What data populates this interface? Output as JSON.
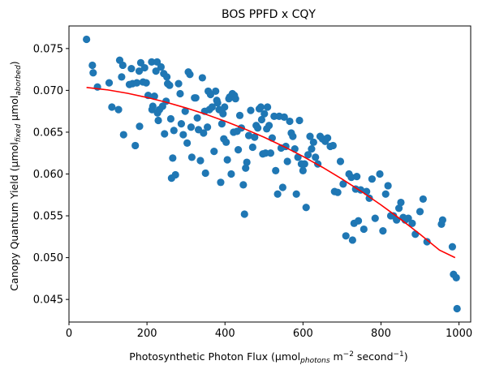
{
  "chart_data": {
    "type": "scatter",
    "title": "BOS PPFD x CQY",
    "xlabel": {
      "prefix": "Photosynthetic Photon Flux (µmol",
      "sub": "photons",
      "mid": " m",
      "sup1": "−2",
      "mid2": " second",
      "sup2": "−1",
      "suffix": ")"
    },
    "ylabel": {
      "prefix": "Canopy Quantum Yield (µmol",
      "sub1": "fixed",
      "mid": " µmol",
      "sub2": "aborbed",
      "suffix": ")"
    },
    "xlim": [
      0,
      1030
    ],
    "ylim": [
      0.0423,
      0.0777
    ],
    "xticks": [
      0,
      200,
      400,
      600,
      800,
      1000
    ],
    "xtick_labels": [
      "0",
      "200",
      "400",
      "600",
      "800",
      "1000"
    ],
    "yticks": [
      0.045,
      0.05,
      0.055,
      0.06,
      0.065,
      0.07,
      0.075
    ],
    "ytick_labels": [
      "0.045",
      "0.050",
      "0.055",
      "0.060",
      "0.065",
      "0.070",
      "0.075"
    ],
    "grid": false,
    "colors": {
      "points": "#1f77b4",
      "fit": "#ff0000"
    },
    "points": [
      [
        45,
        0.0761
      ],
      [
        60,
        0.073
      ],
      [
        62,
        0.0721
      ],
      [
        73,
        0.0704
      ],
      [
        103,
        0.0709
      ],
      [
        110,
        0.068
      ],
      [
        127,
        0.0677
      ],
      [
        130,
        0.0736
      ],
      [
        135,
        0.0716
      ],
      [
        138,
        0.073
      ],
      [
        140,
        0.0647
      ],
      [
        155,
        0.0707
      ],
      [
        160,
        0.0726
      ],
      [
        163,
        0.0708
      ],
      [
        170,
        0.0634
      ],
      [
        174,
        0.0709
      ],
      [
        180,
        0.0723
      ],
      [
        181,
        0.0657
      ],
      [
        184,
        0.0733
      ],
      [
        190,
        0.071
      ],
      [
        194,
        0.0727
      ],
      [
        198,
        0.0709
      ],
      [
        203,
        0.0694
      ],
      [
        212,
        0.0734
      ],
      [
        213,
        0.0677
      ],
      [
        215,
        0.0681
      ],
      [
        219,
        0.0693
      ],
      [
        223,
        0.0723
      ],
      [
        226,
        0.0734
      ],
      [
        227,
        0.0673
      ],
      [
        229,
        0.0664
      ],
      [
        232,
        0.0677
      ],
      [
        236,
        0.0728
      ],
      [
        240,
        0.0681
      ],
      [
        243,
        0.072
      ],
      [
        245,
        0.0648
      ],
      [
        249,
        0.0687
      ],
      [
        251,
        0.0716
      ],
      [
        253,
        0.0708
      ],
      [
        258,
        0.0706
      ],
      [
        261,
        0.0666
      ],
      [
        263,
        0.0595
      ],
      [
        266,
        0.0619
      ],
      [
        269,
        0.0652
      ],
      [
        273,
        0.0599
      ],
      [
        281,
        0.0708
      ],
      [
        285,
        0.0696
      ],
      [
        288,
        0.066
      ],
      [
        293,
        0.0647
      ],
      [
        298,
        0.0675
      ],
      [
        303,
        0.0637
      ],
      [
        306,
        0.0722
      ],
      [
        310,
        0.0719
      ],
      [
        313,
        0.0656
      ],
      [
        315,
        0.062
      ],
      [
        322,
        0.0691
      ],
      [
        325,
        0.0691
      ],
      [
        329,
        0.0667
      ],
      [
        332,
        0.0653
      ],
      [
        337,
        0.0616
      ],
      [
        342,
        0.0715
      ],
      [
        345,
        0.0649
      ],
      [
        348,
        0.0675
      ],
      [
        350,
        0.0601
      ],
      [
        355,
        0.0656
      ],
      [
        357,
        0.0699
      ],
      [
        360,
        0.0677
      ],
      [
        363,
        0.0695
      ],
      [
        367,
        0.068
      ],
      [
        372,
        0.0627
      ],
      [
        376,
        0.0699
      ],
      [
        379,
        0.0688
      ],
      [
        381,
        0.0685
      ],
      [
        385,
        0.0677
      ],
      [
        389,
        0.059
      ],
      [
        392,
        0.066
      ],
      [
        395,
        0.0672
      ],
      [
        397,
        0.0642
      ],
      [
        399,
        0.068
      ],
      [
        403,
        0.0638
      ],
      [
        406,
        0.0617
      ],
      [
        410,
        0.069
      ],
      [
        412,
        0.0692
      ],
      [
        416,
        0.06
      ],
      [
        419,
        0.0696
      ],
      [
        422,
        0.065
      ],
      [
        424,
        0.0694
      ],
      [
        427,
        0.069
      ],
      [
        431,
        0.0651
      ],
      [
        434,
        0.0629
      ],
      [
        438,
        0.067
      ],
      [
        442,
        0.0655
      ],
      [
        447,
        0.0587
      ],
      [
        450,
        0.0552
      ],
      [
        453,
        0.0607
      ],
      [
        456,
        0.0614
      ],
      [
        461,
        0.0646
      ],
      [
        466,
        0.0676
      ],
      [
        471,
        0.0632
      ],
      [
        476,
        0.0644
      ],
      [
        480,
        0.0658
      ],
      [
        484,
        0.0655
      ],
      [
        488,
        0.0678
      ],
      [
        492,
        0.068
      ],
      [
        494,
        0.0665
      ],
      [
        497,
        0.0624
      ],
      [
        501,
        0.0672
      ],
      [
        504,
        0.0625
      ],
      [
        507,
        0.0654
      ],
      [
        509,
        0.068
      ],
      [
        513,
        0.0658
      ],
      [
        517,
        0.0625
      ],
      [
        521,
        0.0643
      ],
      [
        526,
        0.0669
      ],
      [
        530,
        0.0604
      ],
      [
        535,
        0.0576
      ],
      [
        539,
        0.0669
      ],
      [
        544,
        0.0631
      ],
      [
        548,
        0.0584
      ],
      [
        552,
        0.0668
      ],
      [
        556,
        0.0633
      ],
      [
        560,
        0.0615
      ],
      [
        566,
        0.0663
      ],
      [
        570,
        0.0649
      ],
      [
        574,
        0.0645
      ],
      [
        579,
        0.063
      ],
      [
        583,
        0.0576
      ],
      [
        587,
        0.062
      ],
      [
        591,
        0.0664
      ],
      [
        596,
        0.0612
      ],
      [
        600,
        0.0604
      ],
      [
        604,
        0.0612
      ],
      [
        608,
        0.056
      ],
      [
        613,
        0.0623
      ],
      [
        618,
        0.0645
      ],
      [
        622,
        0.063
      ],
      [
        627,
        0.0638
      ],
      [
        632,
        0.062
      ],
      [
        638,
        0.0612
      ],
      [
        644,
        0.0645
      ],
      [
        650,
        0.0642
      ],
      [
        657,
        0.0639
      ],
      [
        663,
        0.0643
      ],
      [
        670,
        0.0633
      ],
      [
        677,
        0.0634
      ],
      [
        681,
        0.0579
      ],
      [
        689,
        0.0578
      ],
      [
        696,
        0.0615
      ],
      [
        703,
        0.0588
      ],
      [
        710,
        0.0526
      ],
      [
        718,
        0.06
      ],
      [
        724,
        0.0596
      ],
      [
        727,
        0.0521
      ],
      [
        731,
        0.0541
      ],
      [
        735,
        0.0582
      ],
      [
        738,
        0.0597
      ],
      [
        742,
        0.0544
      ],
      [
        748,
        0.0581
      ],
      [
        756,
        0.0534
      ],
      [
        763,
        0.0579
      ],
      [
        770,
        0.0571
      ],
      [
        777,
        0.0594
      ],
      [
        785,
        0.0547
      ],
      [
        797,
        0.06
      ],
      [
        805,
        0.0532
      ],
      [
        812,
        0.0576
      ],
      [
        818,
        0.0586
      ],
      [
        825,
        0.055
      ],
      [
        832,
        0.055
      ],
      [
        840,
        0.0545
      ],
      [
        846,
        0.0559
      ],
      [
        851,
        0.0566
      ],
      [
        857,
        0.0548
      ],
      [
        862,
        0.0545
      ],
      [
        870,
        0.0547
      ],
      [
        880,
        0.0541
      ],
      [
        888,
        0.0528
      ],
      [
        900,
        0.0555
      ],
      [
        908,
        0.057
      ],
      [
        918,
        0.0519
      ],
      [
        955,
        0.054
      ],
      [
        958,
        0.0545
      ],
      [
        983,
        0.0513
      ],
      [
        986,
        0.048
      ],
      [
        993,
        0.0476
      ],
      [
        995,
        0.0439
      ]
    ],
    "fit": {
      "type": "quadratic",
      "x": [
        45,
        100,
        150,
        200,
        250,
        300,
        350,
        400,
        450,
        500,
        550,
        600,
        650,
        700,
        750,
        800,
        850,
        900,
        950,
        990
      ],
      "y": [
        0.07035,
        0.07005,
        0.06965,
        0.06915,
        0.06857,
        0.0679,
        0.06715,
        0.06632,
        0.0654,
        0.0644,
        0.0633,
        0.0621,
        0.0608,
        0.0594,
        0.0579,
        0.0563,
        0.0546,
        0.0528,
        0.0509,
        0.05
      ]
    }
  }
}
